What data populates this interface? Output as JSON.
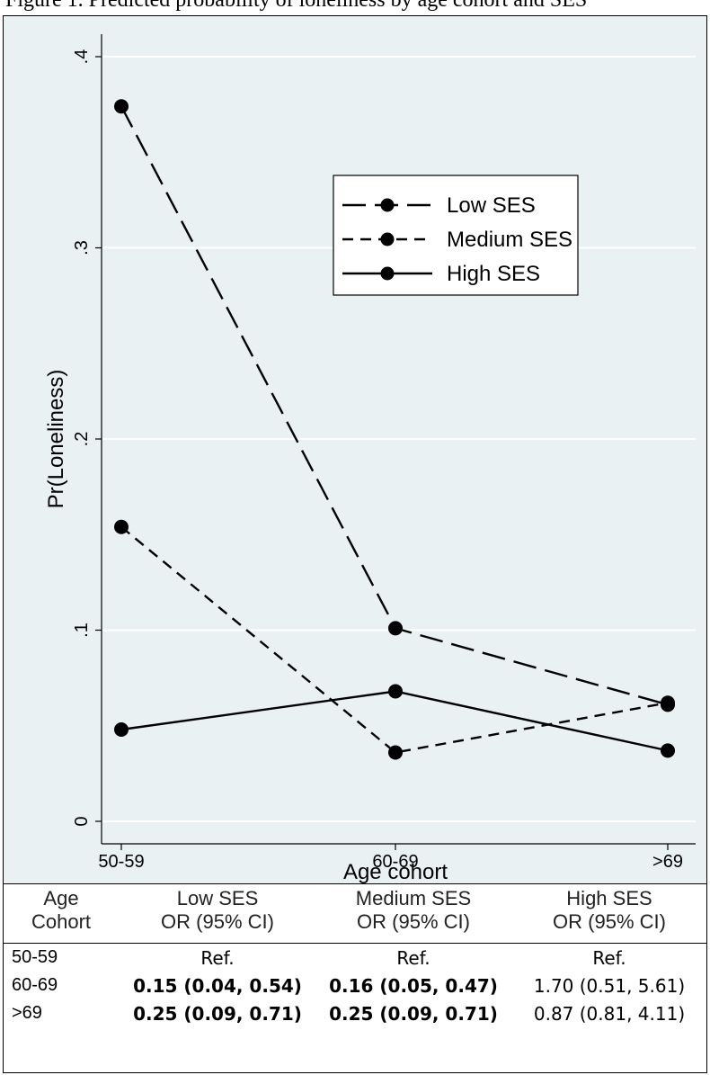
{
  "caption": "Figure 1. Predicted probability of loneliness by age cohort and SES",
  "chart_data": {
    "type": "line",
    "x": [
      "50-59",
      "60-69",
      ">69"
    ],
    "categories": [
      "50-59",
      "60-69",
      ">69"
    ],
    "xlabel": "Age cohort",
    "ylabel": "Pr(Loneliness)",
    "ylim": [
      0,
      0.4
    ],
    "yticks": [
      0,
      0.1,
      0.2,
      0.3,
      0.4
    ],
    "ytick_labels": [
      "0",
      ".1",
      ".2",
      ".3",
      ".4"
    ],
    "grid": true,
    "legend_position": "upper-right",
    "series": [
      {
        "name": "Low SES",
        "style": "long-dash",
        "values": [
          0.374,
          0.101,
          0.061
        ]
      },
      {
        "name": "Medium SES",
        "style": "short-dash",
        "values": [
          0.154,
          0.036,
          0.062
        ]
      },
      {
        "name": "High SES",
        "style": "solid",
        "values": [
          0.048,
          0.068,
          0.037
        ]
      }
    ],
    "colors": {
      "background": "#eaf1f3",
      "grid": "#ffffff",
      "lines": "#000000"
    }
  },
  "table": {
    "headers": [
      {
        "line1": "Age",
        "line2": "Cohort"
      },
      {
        "line1": "Low SES",
        "line2": "OR (95% CI)"
      },
      {
        "line1": "Medium SES",
        "line2": "OR (95% CI)"
      },
      {
        "line1": "High SES",
        "line2": "OR (95% CI)"
      }
    ],
    "rows": [
      {
        "age": "50-59",
        "low": "Ref.",
        "medium": "Ref.",
        "high": "Ref."
      },
      {
        "age": "60-69",
        "low": "0.15 (0.04, 0.54)",
        "medium": "0.16 (0.05, 0.47)",
        "high": "1.70 (0.51, 5.61)"
      },
      {
        "age": ">69",
        "low": "0.25 (0.09, 0.71)",
        "medium": "0.25 (0.09, 0.71)",
        "high": "0.87 (0.81, 4.11)"
      }
    ]
  }
}
